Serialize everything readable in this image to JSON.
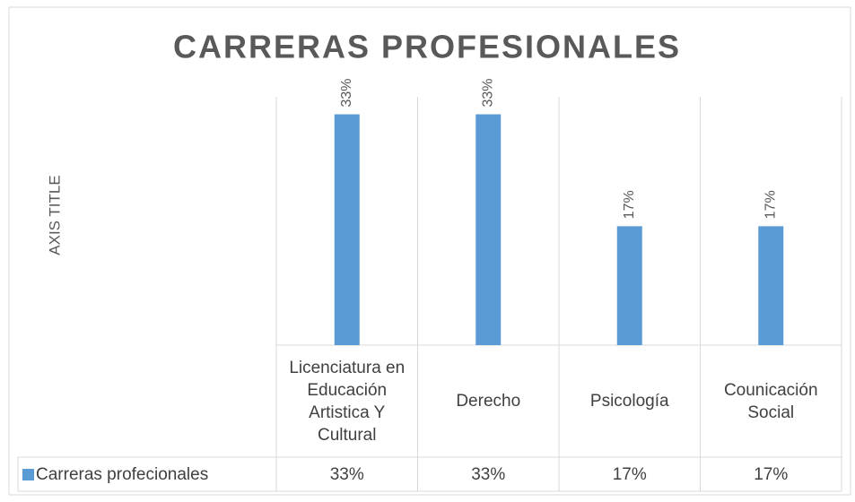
{
  "chart_data": {
    "type": "bar",
    "title": "CARRERAS PROFESIONALES",
    "y_axis_title": "AXIS TITLE",
    "categories": [
      "Licenciatura en Educación Artistica Y Cultural",
      "Derecho",
      "Psicología",
      "Counicación Social"
    ],
    "series": [
      {
        "name": "Carreras profecionales",
        "color": "#5b9bd5",
        "values": [
          33,
          33,
          17,
          17
        ],
        "value_labels": [
          "33%",
          "33%",
          "17%",
          "17%"
        ]
      }
    ],
    "ylim": [
      0,
      35.5
    ],
    "data_table": true
  }
}
